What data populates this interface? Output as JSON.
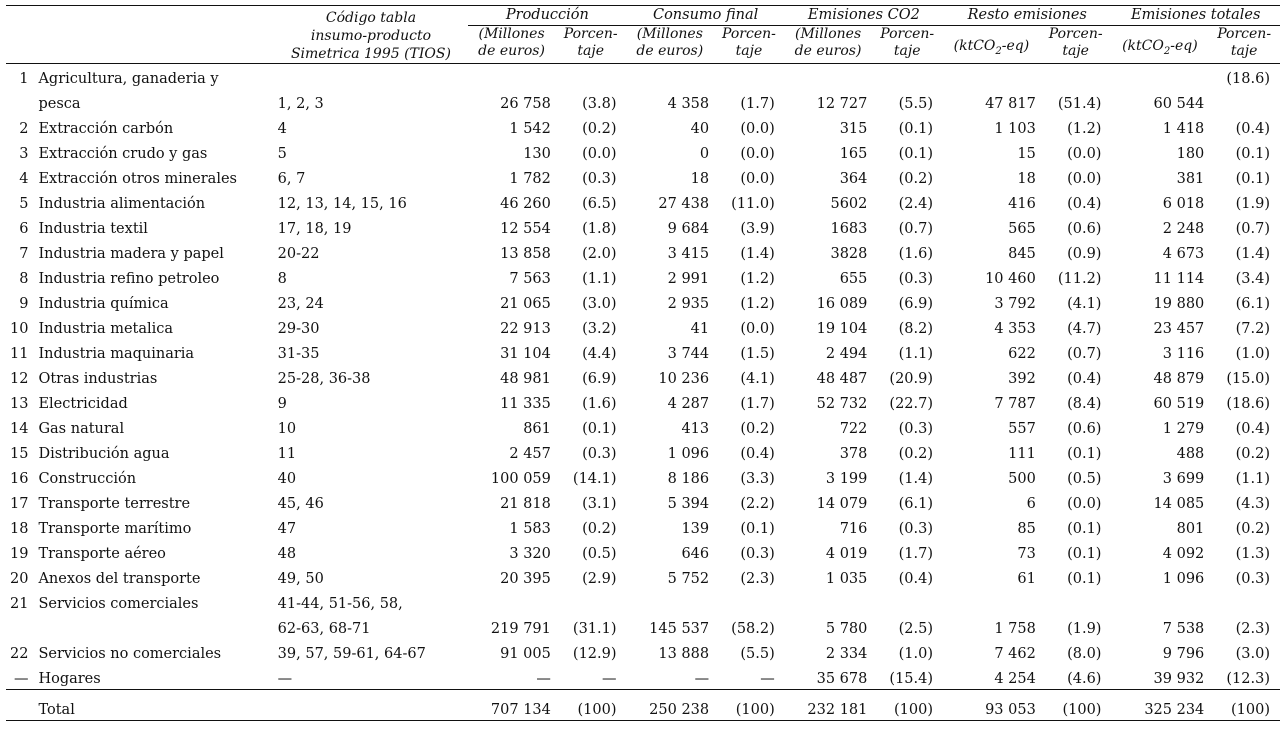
{
  "headers": {
    "code": [
      "Código tabla",
      "insumo-producto",
      "Simetrica 1995 (TIOS)"
    ],
    "groups": [
      {
        "title": "Producción",
        "sub1": [
          "(Millones",
          "de euros)"
        ],
        "sub2": [
          "Porcen-",
          "taje"
        ]
      },
      {
        "title": "Consumo final",
        "sub1": [
          "(Millones",
          "de euros)"
        ],
        "sub2": [
          "Porcen-",
          "taje"
        ]
      },
      {
        "title": "Emisiones CO2",
        "sub1": [
          "(Millones",
          "de euros)"
        ],
        "sub2": [
          "Porcen-",
          "taje"
        ]
      },
      {
        "title": "Resto emisiones",
        "sub1": [
          "(ktCO2-eq)"
        ],
        "sub2": [
          "Porcen-",
          "taje"
        ]
      },
      {
        "title": "Emisiones totales",
        "sub1": [
          "(ktCO2-eq)"
        ],
        "sub2": [
          "Porcen-",
          "taje"
        ]
      }
    ]
  },
  "rows": [
    {
      "idx": "1",
      "name": [
        "Agricultura, ganaderia y",
        "pesca"
      ],
      "code": [
        "1, 2, 3"
      ],
      "vals": [
        "26 758",
        "(3.8)",
        "4 358",
        "(1.7)",
        "12 727",
        "(5.5)",
        "47 817",
        "(51.4)",
        "60 544"
      ],
      "last_pct": "(18.6)"
    },
    {
      "idx": "2",
      "name": [
        "Extracción carbón"
      ],
      "code": [
        "4"
      ],
      "vals": [
        "1 542",
        "(0.2)",
        "40",
        "(0.0)",
        "315",
        "(0.1)",
        "1 103",
        "(1.2)",
        "1 418"
      ],
      "last_pct": "(0.4)"
    },
    {
      "idx": "3",
      "name": [
        "Extracción crudo y gas"
      ],
      "code": [
        "5"
      ],
      "vals": [
        "130",
        "(0.0)",
        "0",
        "(0.0)",
        "165",
        "(0.1)",
        "15",
        "(0.0)",
        "180"
      ],
      "last_pct": "(0.1)"
    },
    {
      "idx": "4",
      "name": [
        "Extracción otros minerales"
      ],
      "code": [
        "6, 7"
      ],
      "vals": [
        "1 782",
        "(0.3)",
        "18",
        "(0.0)",
        "364",
        "(0.2)",
        "18",
        "(0.0)",
        "381"
      ],
      "last_pct": "(0.1)"
    },
    {
      "idx": "5",
      "name": [
        "Industria alimentación"
      ],
      "code": [
        "12, 13, 14, 15, 16"
      ],
      "vals": [
        "46 260",
        "(6.5)",
        "27 438",
        "(11.0)",
        "5602",
        "(2.4)",
        "416",
        "(0.4)",
        "6 018"
      ],
      "last_pct": "(1.9)"
    },
    {
      "idx": "6",
      "name": [
        "Industria textil"
      ],
      "code": [
        "17, 18, 19"
      ],
      "vals": [
        "12 554",
        "(1.8)",
        "9 684",
        "(3.9)",
        "1683",
        "(0.7)",
        "565",
        "(0.6)",
        "2 248"
      ],
      "last_pct": "(0.7)"
    },
    {
      "idx": "7",
      "name": [
        "Industria madera y papel"
      ],
      "code": [
        "20-22"
      ],
      "vals": [
        "13 858",
        "(2.0)",
        "3 415",
        "(1.4)",
        "3828",
        "(1.6)",
        "845",
        "(0.9)",
        "4 673"
      ],
      "last_pct": "(1.4)"
    },
    {
      "idx": "8",
      "name": [
        "Industria refino petroleo"
      ],
      "code": [
        "8"
      ],
      "vals": [
        "7 563",
        "(1.1)",
        "2 991",
        "(1.2)",
        "655",
        "(0.3)",
        "10 460",
        "(11.2)",
        "11 114"
      ],
      "last_pct": "(3.4)"
    },
    {
      "idx": "9",
      "name": [
        "Industria química"
      ],
      "code": [
        "23, 24"
      ],
      "vals": [
        "21 065",
        "(3.0)",
        "2 935",
        "(1.2)",
        "16 089",
        "(6.9)",
        "3 792",
        "(4.1)",
        "19 880"
      ],
      "last_pct": "(6.1)"
    },
    {
      "idx": "10",
      "name": [
        "Industria metalica"
      ],
      "code": [
        "29-30"
      ],
      "vals": [
        "22 913",
        "(3.2)",
        "41",
        "(0.0)",
        "19 104",
        "(8.2)",
        "4 353",
        "(4.7)",
        "23 457"
      ],
      "last_pct": "(7.2)"
    },
    {
      "idx": "11",
      "name": [
        "Industria maquinaria"
      ],
      "code": [
        "31-35"
      ],
      "vals": [
        "31 104",
        "(4.4)",
        "3 744",
        "(1.5)",
        "2 494",
        "(1.1)",
        "622",
        "(0.7)",
        "3 116"
      ],
      "last_pct": "(1.0)"
    },
    {
      "idx": "12",
      "name": [
        "Otras industrias"
      ],
      "code": [
        "25-28, 36-38"
      ],
      "vals": [
        "48 981",
        "(6.9)",
        "10 236",
        "(4.1)",
        "48 487",
        "(20.9)",
        "392",
        "(0.4)",
        "48 879"
      ],
      "last_pct": "(15.0)"
    },
    {
      "idx": "13",
      "name": [
        "Electricidad"
      ],
      "code": [
        "9"
      ],
      "vals": [
        "11 335",
        "(1.6)",
        "4 287",
        "(1.7)",
        "52 732",
        "(22.7)",
        "7 787",
        "(8.4)",
        "60 519"
      ],
      "last_pct": "(18.6)"
    },
    {
      "idx": "14",
      "name": [
        "Gas natural"
      ],
      "code": [
        "10"
      ],
      "vals": [
        "861",
        "(0.1)",
        "413",
        "(0.2)",
        "722",
        "(0.3)",
        "557",
        "(0.6)",
        "1 279"
      ],
      "last_pct": "(0.4)"
    },
    {
      "idx": "15",
      "name": [
        "Distribución agua"
      ],
      "code": [
        "11"
      ],
      "vals": [
        "2 457",
        "(0.3)",
        "1 096",
        "(0.4)",
        "378",
        "(0.2)",
        "111",
        "(0.1)",
        "488"
      ],
      "last_pct": "(0.2)"
    },
    {
      "idx": "16",
      "name": [
        "Construcción"
      ],
      "code": [
        "40"
      ],
      "vals": [
        "100 059",
        "(14.1)",
        "8 186",
        "(3.3)",
        "3 199",
        "(1.4)",
        "500",
        "(0.5)",
        "3 699"
      ],
      "last_pct": "(1.1)"
    },
    {
      "idx": "17",
      "name": [
        "Transporte terrestre"
      ],
      "code": [
        "45, 46"
      ],
      "vals": [
        "21 818",
        "(3.1)",
        "5 394",
        "(2.2)",
        "14 079",
        "(6.1)",
        "6",
        "(0.0)",
        "14 085"
      ],
      "last_pct": "(4.3)"
    },
    {
      "idx": "18",
      "name": [
        "Transporte marítimo"
      ],
      "code": [
        "47"
      ],
      "vals": [
        "1 583",
        "(0.2)",
        "139",
        "(0.1)",
        "716",
        "(0.3)",
        "85",
        "(0.1)",
        "801"
      ],
      "last_pct": "(0.2)"
    },
    {
      "idx": "19",
      "name": [
        "Transporte aéreo"
      ],
      "code": [
        "48"
      ],
      "vals": [
        "3 320",
        "(0.5)",
        "646",
        "(0.3)",
        "4 019",
        "(1.7)",
        "73",
        "(0.1)",
        "4 092"
      ],
      "last_pct": "(1.3)"
    },
    {
      "idx": "20",
      "name": [
        "Anexos del transporte"
      ],
      "code": [
        "49, 50"
      ],
      "vals": [
        "20 395",
        "(2.9)",
        "5 752",
        "(2.3)",
        "1 035",
        "(0.4)",
        "61",
        "(0.1)",
        "1 096"
      ],
      "last_pct": "(0.3)"
    },
    {
      "idx": "21",
      "name": [
        "Servicios comerciales"
      ],
      "code": [
        "41-44, 51-56, 58,",
        "62-63, 68-71"
      ],
      "vals": [
        "219 791",
        "(31.1)",
        "145 537",
        "(58.2)",
        "5 780",
        "(2.5)",
        "1 758",
        "(1.9)",
        "7 538"
      ],
      "last_pct": "(2.3)"
    },
    {
      "idx": "22",
      "name": [
        "Servicios no comerciales"
      ],
      "code": [
        "39, 57, 59-61, 64-67"
      ],
      "vals": [
        "91 005",
        "(12.9)",
        "13 888",
        "(5.5)",
        "2 334",
        "(1.0)",
        "7 462",
        "(8.0)",
        "9 796"
      ],
      "last_pct": "(3.0)"
    },
    {
      "idx": "—",
      "name": [
        "Hogares"
      ],
      "code": [
        "—"
      ],
      "vals": [
        "—",
        "—",
        "—",
        "—",
        "35 678",
        "(15.4)",
        "4 254",
        "(4.6)",
        "39 932"
      ],
      "last_pct": "(12.3)"
    }
  ],
  "total": {
    "label": "Total",
    "vals": [
      "707 134",
      "(100)",
      "250 238",
      "(100)",
      "232 181",
      "(100)",
      "93 053",
      "(100)",
      "325 234"
    ],
    "last_pct": "(100)"
  }
}
